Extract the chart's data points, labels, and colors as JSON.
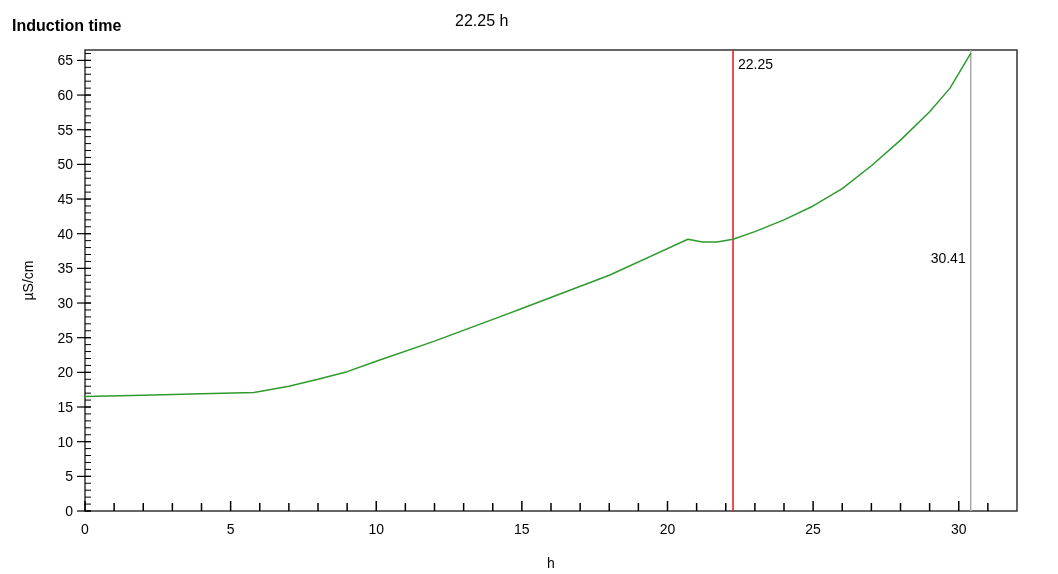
{
  "chart_data": {
    "type": "line",
    "title": "Induction time",
    "subtitle": "22.25 h",
    "xlabel": "h",
    "ylabel": "µS/cm",
    "x": [
      0,
      2,
      4,
      5.8,
      7,
      8,
      9,
      10,
      12,
      15,
      18,
      20.7,
      21.2,
      21.7,
      22.25,
      23,
      24,
      25,
      26,
      27,
      28,
      29,
      29.7,
      30.41
    ],
    "series": [
      {
        "color": "#2e9a2e",
        "values": [
          16.5,
          16.7,
          16.9,
          17.1,
          18,
          19,
          20.1,
          21.6,
          24.5,
          29.2,
          34,
          39.2,
          38.8,
          38.8,
          39.2,
          40.3,
          42,
          44,
          46.5,
          49.8,
          53.5,
          57.6,
          61,
          66
        ]
      }
    ],
    "xlim": [
      0,
      32
    ],
    "ylim": [
      0,
      66.5
    ],
    "xticks": [
      0,
      {
        "value": 1,
        "label": null
      },
      {
        "value": 2,
        "label": null
      },
      {
        "value": 3,
        "label": null
      },
      {
        "value": 4,
        "label": null
      },
      5,
      {
        "value": 6,
        "label": null
      },
      {
        "value": 7,
        "label": null
      },
      {
        "value": 8,
        "label": null
      },
      {
        "value": 9,
        "label": null
      },
      10,
      {
        "value": 11,
        "label": null
      },
      {
        "value": 12,
        "label": null
      },
      {
        "value": 13,
        "label": null
      },
      {
        "value": 14,
        "label": null
      },
      15,
      {
        "value": 16,
        "label": null
      },
      {
        "value": 17,
        "label": null
      },
      {
        "value": 18,
        "label": null
      },
      {
        "value": 19,
        "label": null
      },
      20,
      {
        "value": 21,
        "label": null
      },
      {
        "value": 22,
        "label": null
      },
      {
        "value": 23,
        "label": null
      },
      {
        "value": 24,
        "label": null
      },
      25,
      {
        "value": 26,
        "label": null
      },
      {
        "value": 27,
        "label": null
      },
      {
        "value": 28,
        "label": null
      },
      {
        "value": 29,
        "label": null
      },
      30,
      {
        "value": 31,
        "label": null
      }
    ],
    "yticks": [
      0,
      5,
      10,
      15,
      20,
      25,
      30,
      35,
      40,
      45,
      50,
      55,
      60,
      65
    ],
    "grid": false,
    "marker": "none",
    "line_style": "solid",
    "ref_lines": [
      {
        "axis": "x",
        "value": 22.25,
        "label": "22.25",
        "color": "#e8141a"
      },
      {
        "axis": "x",
        "value": 30.41,
        "label": "30.41",
        "color": "#a8a8a8"
      }
    ]
  }
}
